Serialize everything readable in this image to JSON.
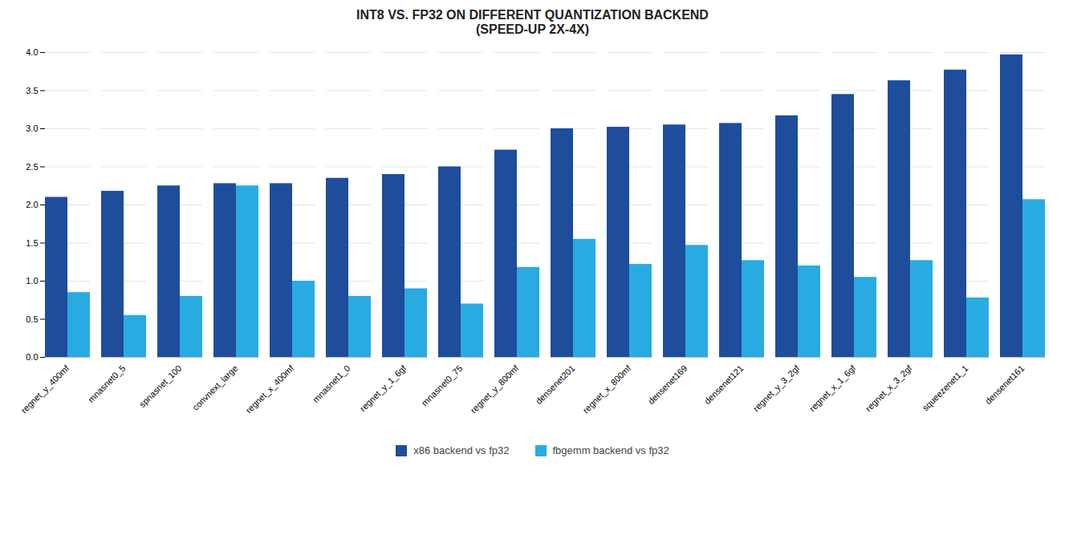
{
  "chart_data": {
    "type": "bar",
    "title": "INT8 VS. FP32 ON DIFFERENT QUANTIZATION BACKEND\n(SPEED-UP 2X-4X)",
    "categories": [
      "regnet_y_400mf",
      "mnasnet0_5",
      "spnasnet_100",
      "convnext_large",
      "regnet_x_400mf",
      "mnasnet1_0",
      "regnet_y_1_6gf",
      "mnasnet0_75",
      "regnet_y_800mf",
      "densenet201",
      "regnet_x_800mf",
      "densenet169",
      "densenet121",
      "regnet_y_3_2gf",
      "regnet_x_1_6gf",
      "regnet_x_3_2gf",
      "squeezenet1_1",
      "densenet161"
    ],
    "series": [
      {
        "name": "x86 backend vs fp32",
        "color": "#1e4d9b",
        "values": [
          2.1,
          2.18,
          2.25,
          2.28,
          2.28,
          2.35,
          2.4,
          2.5,
          2.72,
          3.0,
          3.02,
          3.05,
          3.07,
          3.17,
          3.45,
          3.63,
          3.77,
          3.97
        ]
      },
      {
        "name": "fbgemm backend vs fp32",
        "color": "#29abe2",
        "values": [
          0.85,
          0.55,
          0.8,
          2.25,
          1.0,
          0.8,
          0.9,
          0.7,
          1.18,
          1.55,
          1.22,
          1.47,
          1.27,
          1.2,
          1.05,
          1.27,
          0.78,
          2.07
        ]
      }
    ],
    "ylim": [
      0,
      4.0
    ],
    "yticks": [
      {
        "value": 0,
        "label": "0.0"
      },
      0.5,
      {
        "value": 1,
        "label": "1.0"
      },
      1.5,
      {
        "value": 2,
        "label": "2.0"
      },
      2.5,
      {
        "value": 3,
        "label": "3.0"
      },
      3.5,
      {
        "value": 4,
        "label": "4.0"
      }
    ],
    "grid": true,
    "legend": "bottom"
  }
}
